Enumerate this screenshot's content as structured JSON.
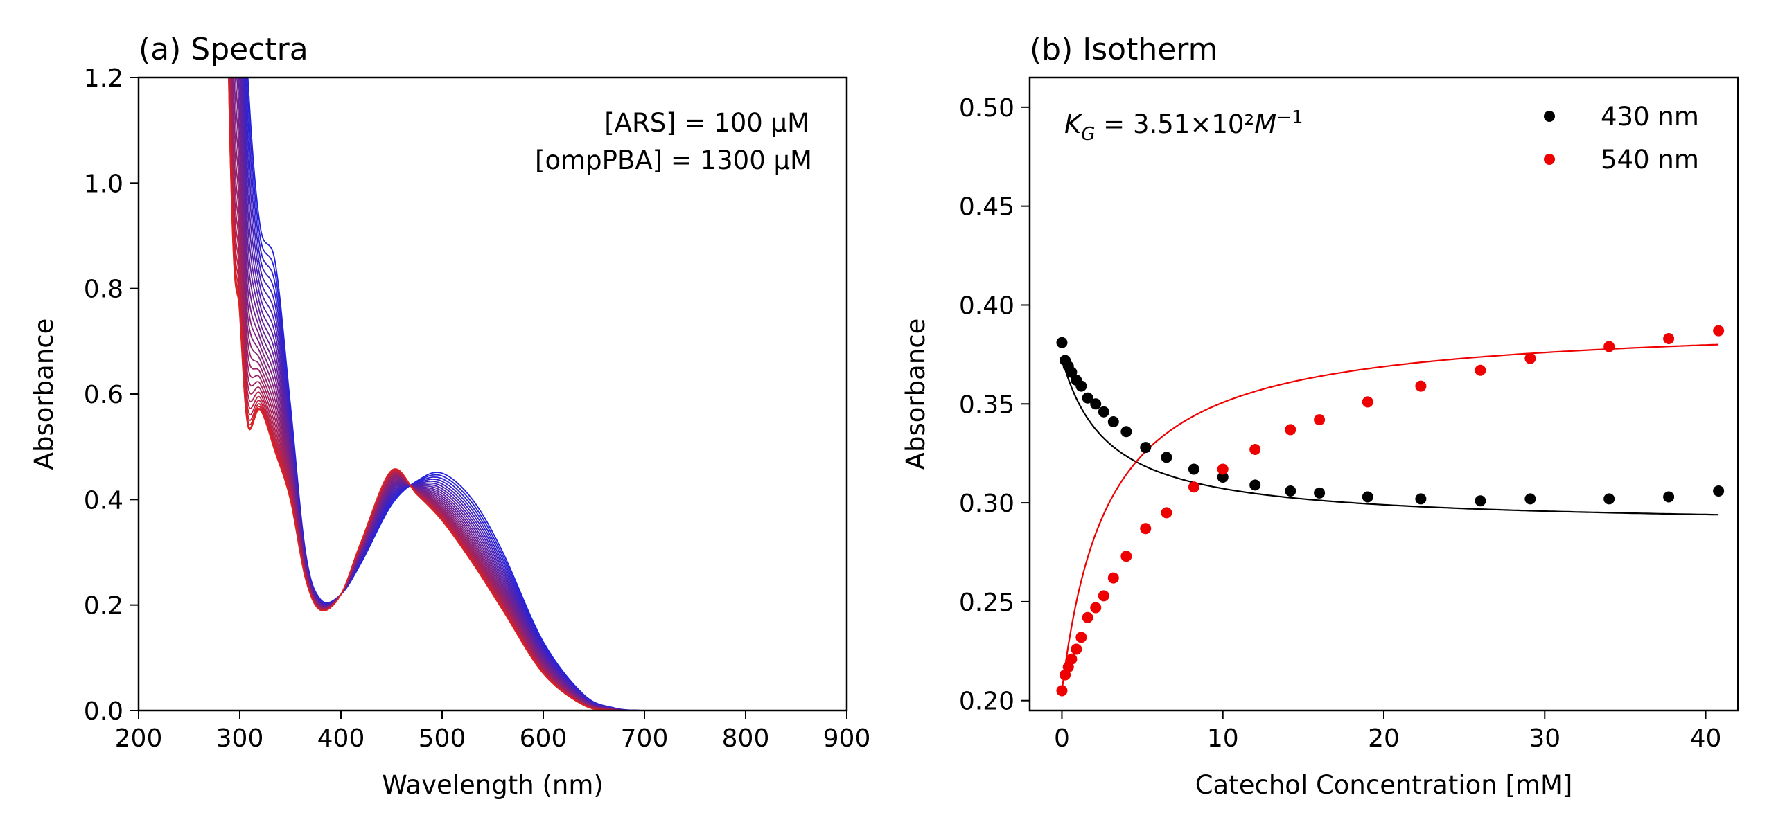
{
  "chart_data": [
    {
      "type": "line",
      "title": "(a) Spectra",
      "xlabel": "Wavelength (nm)",
      "ylabel": "Absorbance",
      "xlim": [
        200,
        900
      ],
      "ylim": [
        0.0,
        1.2
      ],
      "xticks": [
        200,
        300,
        400,
        500,
        600,
        700,
        800,
        900
      ],
      "xtick_labels": [
        "200",
        "300",
        "400",
        "500",
        "600",
        "700",
        "800",
        "900"
      ],
      "yticks": [
        0.0,
        0.2,
        0.4,
        0.6,
        0.8,
        1.0,
        1.2
      ],
      "ytick_labels": [
        "0.0",
        "0.2",
        "0.4",
        "0.6",
        "0.8",
        "1.0",
        "1.2"
      ],
      "annotations": [
        "[ARS] = 100 μM",
        "[ompPBA] = 1300 μM"
      ],
      "grid": false,
      "series_description": "Titration spectra, colour gradient from blue (first) to red (last)",
      "color_start": "#2222dd",
      "color_end": "#dd2222",
      "endpoints": {
        "x": [
          270,
          290,
          300,
          308,
          320,
          335,
          350,
          365,
          380,
          400,
          420,
          450,
          475,
          500,
          530,
          560,
          600,
          640,
          670,
          700,
          750,
          800,
          900
        ],
        "first_blue": [
          2.4,
          2.0,
          1.6,
          1.2,
          0.92,
          0.85,
          0.58,
          0.3,
          0.21,
          0.22,
          0.28,
          0.39,
          0.435,
          0.45,
          0.4,
          0.3,
          0.13,
          0.03,
          0.005,
          0.0,
          0.0,
          0.0,
          0.0
        ],
        "last_red": [
          3.2,
          1.1,
          0.75,
          0.54,
          0.57,
          0.49,
          0.4,
          0.25,
          0.19,
          0.22,
          0.32,
          0.455,
          0.41,
          0.36,
          0.28,
          0.19,
          0.07,
          0.01,
          0.0,
          0.0,
          0.0,
          0.0,
          0.0
        ]
      },
      "num_spectra": 28
    },
    {
      "type": "scatter",
      "title": "(b) Isotherm",
      "xlabel": "Catechol Concentration [mM]",
      "ylabel": "Absorbance",
      "xlim": [
        -2,
        42
      ],
      "ylim": [
        0.195,
        0.515
      ],
      "xticks": [
        0,
        10,
        20,
        30,
        40
      ],
      "xtick_labels": [
        "0",
        "10",
        "20",
        "30",
        "40"
      ],
      "yticks": [
        0.2,
        0.25,
        0.3,
        0.35,
        0.4,
        0.45,
        0.5
      ],
      "ytick_labels": [
        "0.20",
        "0.25",
        "0.30",
        "0.35",
        "0.40",
        "0.45",
        "0.50"
      ],
      "annotation": {
        "K_sym": "K",
        "K_sub": "G",
        "K_rest": " = 3.51×10²",
        "M": "M",
        "M_sup": "−1"
      },
      "legend_position": "upper-right",
      "grid": false,
      "series": [
        {
          "name": "430 nm",
          "color": "#000000",
          "x": [
            0,
            0.2,
            0.4,
            0.6,
            0.9,
            1.2,
            1.6,
            2.1,
            2.6,
            3.2,
            4.0,
            5.2,
            6.5,
            8.2,
            10.0,
            12.0,
            14.2,
            16.0,
            19.0,
            22.3,
            26.0,
            29.1,
            34.0,
            37.7,
            40.8
          ],
          "y": [
            0.381,
            0.372,
            0.369,
            0.366,
            0.362,
            0.359,
            0.353,
            0.35,
            0.346,
            0.341,
            0.336,
            0.328,
            0.323,
            0.317,
            0.313,
            0.309,
            0.306,
            0.305,
            0.303,
            0.302,
            0.301,
            0.302,
            0.302,
            0.303,
            0.306
          ],
          "fit_start": 0.373,
          "fit_end": 0.294
        },
        {
          "name": "540 nm",
          "color": "#ee0000",
          "x": [
            0,
            0.2,
            0.4,
            0.6,
            0.9,
            1.2,
            1.6,
            2.1,
            2.6,
            3.2,
            4.0,
            5.2,
            6.5,
            8.2,
            10.0,
            12.0,
            14.2,
            16.0,
            19.0,
            22.3,
            26.0,
            29.1,
            34.0,
            37.7,
            40.8
          ],
          "y": [
            0.205,
            0.213,
            0.217,
            0.221,
            0.226,
            0.232,
            0.242,
            0.247,
            0.253,
            0.262,
            0.273,
            0.287,
            0.295,
            0.308,
            0.317,
            0.327,
            0.337,
            0.342,
            0.351,
            0.359,
            0.367,
            0.373,
            0.379,
            0.383,
            0.387
          ],
          "fit_start": 0.205,
          "fit_end": 0.38
        }
      ],
      "K_fit": 0.351
    }
  ]
}
